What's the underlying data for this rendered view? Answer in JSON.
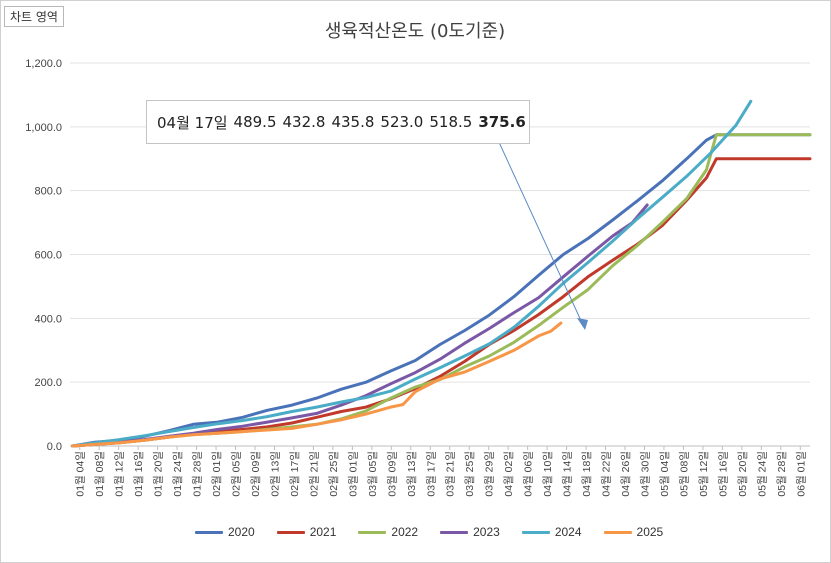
{
  "area_label": "차트 영역",
  "chart_data": {
    "type": "line",
    "title": "생육적산온도 (0도기준)",
    "xlabel": "",
    "ylabel": "",
    "ylim": [
      0,
      1200
    ],
    "yticks": [
      "0.0",
      "200.0",
      "400.0",
      "600.0",
      "800.0",
      "1,000.0",
      "1,200.0"
    ],
    "x_tick_labels": [
      "01월 04일",
      "01월 08일",
      "01월 12일",
      "01월 16일",
      "01월 20일",
      "01월 24일",
      "01월 28일",
      "02월 01일",
      "02월 05일",
      "02월 09일",
      "02월 13일",
      "02월 17일",
      "02월 21일",
      "02월 25일",
      "03월 01일",
      "03월 05일",
      "03월 09일",
      "03월 13일",
      "03월 17일",
      "03월 21일",
      "03월 25일",
      "03월 29일",
      "04월 02일",
      "04월 06일",
      "04월 10일",
      "04월 14일",
      "04월 18일",
      "04월 22일",
      "04월 26일",
      "04월 30일",
      "05월 04일",
      "05월 08일",
      "05월 12일",
      "05월 16일",
      "05월 20일",
      "05월 24일",
      "05월 28일",
      "06월 01일"
    ],
    "x_day_start": 1,
    "x_day_end": 152,
    "series": [
      {
        "name": "2020",
        "color": "#4a72b8",
        "points": [
          [
            1,
            0
          ],
          [
            10,
            12
          ],
          [
            20,
            18
          ],
          [
            30,
            30
          ],
          [
            40,
            48
          ],
          [
            50,
            68
          ],
          [
            60,
            75
          ],
          [
            70,
            90
          ],
          [
            80,
            112
          ],
          [
            90,
            128
          ],
          [
            100,
            150
          ],
          [
            110,
            178
          ],
          [
            120,
            200
          ],
          [
            130,
            235
          ],
          [
            140,
            268
          ],
          [
            150,
            318
          ],
          [
            160,
            362
          ],
          [
            170,
            410
          ],
          [
            180,
            468
          ],
          [
            190,
            535
          ],
          [
            200,
            600
          ],
          [
            210,
            650
          ],
          [
            220,
            708
          ],
          [
            230,
            768
          ],
          [
            240,
            830
          ],
          [
            250,
            900
          ],
          [
            258,
            958
          ],
          [
            262,
            975
          ],
          [
            300,
            975
          ]
        ]
      },
      {
        "name": "2021",
        "color": "#c0392b",
        "points": [
          [
            1,
            0
          ],
          [
            10,
            5
          ],
          [
            20,
            10
          ],
          [
            30,
            18
          ],
          [
            40,
            28
          ],
          [
            50,
            38
          ],
          [
            60,
            45
          ],
          [
            70,
            52
          ],
          [
            80,
            60
          ],
          [
            90,
            72
          ],
          [
            100,
            90
          ],
          [
            110,
            108
          ],
          [
            120,
            122
          ],
          [
            130,
            148
          ],
          [
            140,
            180
          ],
          [
            150,
            218
          ],
          [
            160,
            265
          ],
          [
            170,
            318
          ],
          [
            180,
            362
          ],
          [
            190,
            412
          ],
          [
            200,
            468
          ],
          [
            210,
            530
          ],
          [
            220,
            582
          ],
          [
            230,
            632
          ],
          [
            240,
            690
          ],
          [
            250,
            770
          ],
          [
            258,
            840
          ],
          [
            262,
            900
          ],
          [
            300,
            900
          ]
        ]
      },
      {
        "name": "2022",
        "color": "#9bbb59",
        "points": [
          [
            1,
            0
          ],
          [
            10,
            5
          ],
          [
            20,
            10
          ],
          [
            30,
            18
          ],
          [
            40,
            28
          ],
          [
            50,
            36
          ],
          [
            60,
            40
          ],
          [
            70,
            45
          ],
          [
            80,
            52
          ],
          [
            90,
            60
          ],
          [
            100,
            68
          ],
          [
            110,
            85
          ],
          [
            120,
            110
          ],
          [
            130,
            150
          ],
          [
            140,
            185
          ],
          [
            150,
            208
          ],
          [
            160,
            248
          ],
          [
            170,
            282
          ],
          [
            180,
            325
          ],
          [
            190,
            378
          ],
          [
            200,
            435
          ],
          [
            210,
            490
          ],
          [
            220,
            565
          ],
          [
            230,
            628
          ],
          [
            240,
            700
          ],
          [
            250,
            775
          ],
          [
            258,
            865
          ],
          [
            262,
            975
          ],
          [
            300,
            975
          ]
        ]
      },
      {
        "name": "2023",
        "color": "#7b58a6",
        "points": [
          [
            1,
            0
          ],
          [
            10,
            5
          ],
          [
            20,
            12
          ],
          [
            30,
            20
          ],
          [
            40,
            30
          ],
          [
            50,
            40
          ],
          [
            60,
            52
          ],
          [
            70,
            62
          ],
          [
            80,
            75
          ],
          [
            90,
            88
          ],
          [
            100,
            102
          ],
          [
            110,
            128
          ],
          [
            120,
            158
          ],
          [
            130,
            195
          ],
          [
            140,
            230
          ],
          [
            150,
            272
          ],
          [
            160,
            322
          ],
          [
            170,
            368
          ],
          [
            180,
            418
          ],
          [
            190,
            465
          ],
          [
            200,
            530
          ],
          [
            210,
            595
          ],
          [
            220,
            658
          ],
          [
            228,
            700
          ],
          [
            234,
            755
          ]
        ]
      },
      {
        "name": "2024",
        "color": "#4aacc6",
        "points": [
          [
            1,
            0
          ],
          [
            10,
            10
          ],
          [
            20,
            20
          ],
          [
            30,
            32
          ],
          [
            40,
            45
          ],
          [
            50,
            58
          ],
          [
            60,
            70
          ],
          [
            70,
            80
          ],
          [
            80,
            92
          ],
          [
            90,
            108
          ],
          [
            100,
            122
          ],
          [
            110,
            138
          ],
          [
            120,
            152
          ],
          [
            130,
            172
          ],
          [
            140,
            210
          ],
          [
            150,
            245
          ],
          [
            160,
            282
          ],
          [
            170,
            320
          ],
          [
            180,
            372
          ],
          [
            190,
            438
          ],
          [
            200,
            510
          ],
          [
            210,
            575
          ],
          [
            220,
            642
          ],
          [
            230,
            712
          ],
          [
            240,
            778
          ],
          [
            250,
            845
          ],
          [
            260,
            920
          ],
          [
            270,
            1005
          ],
          [
            276,
            1080
          ]
        ]
      },
      {
        "name": "2025",
        "color": "#f79646",
        "points": [
          [
            1,
            0
          ],
          [
            10,
            5
          ],
          [
            20,
            10
          ],
          [
            30,
            18
          ],
          [
            40,
            28
          ],
          [
            50,
            35
          ],
          [
            60,
            40
          ],
          [
            70,
            45
          ],
          [
            80,
            50
          ],
          [
            90,
            55
          ],
          [
            100,
            68
          ],
          [
            110,
            82
          ],
          [
            120,
            100
          ],
          [
            130,
            122
          ],
          [
            135,
            130
          ],
          [
            140,
            170
          ],
          [
            150,
            210
          ],
          [
            160,
            232
          ],
          [
            170,
            265
          ],
          [
            180,
            300
          ],
          [
            190,
            345
          ],
          [
            195,
            360
          ],
          [
            199,
            385
          ]
        ]
      }
    ]
  },
  "callout": {
    "date": "04월 17일",
    "values": [
      "489.5",
      "432.8",
      "435.8",
      "523.0",
      "518.5"
    ],
    "highlight": "375.6"
  }
}
